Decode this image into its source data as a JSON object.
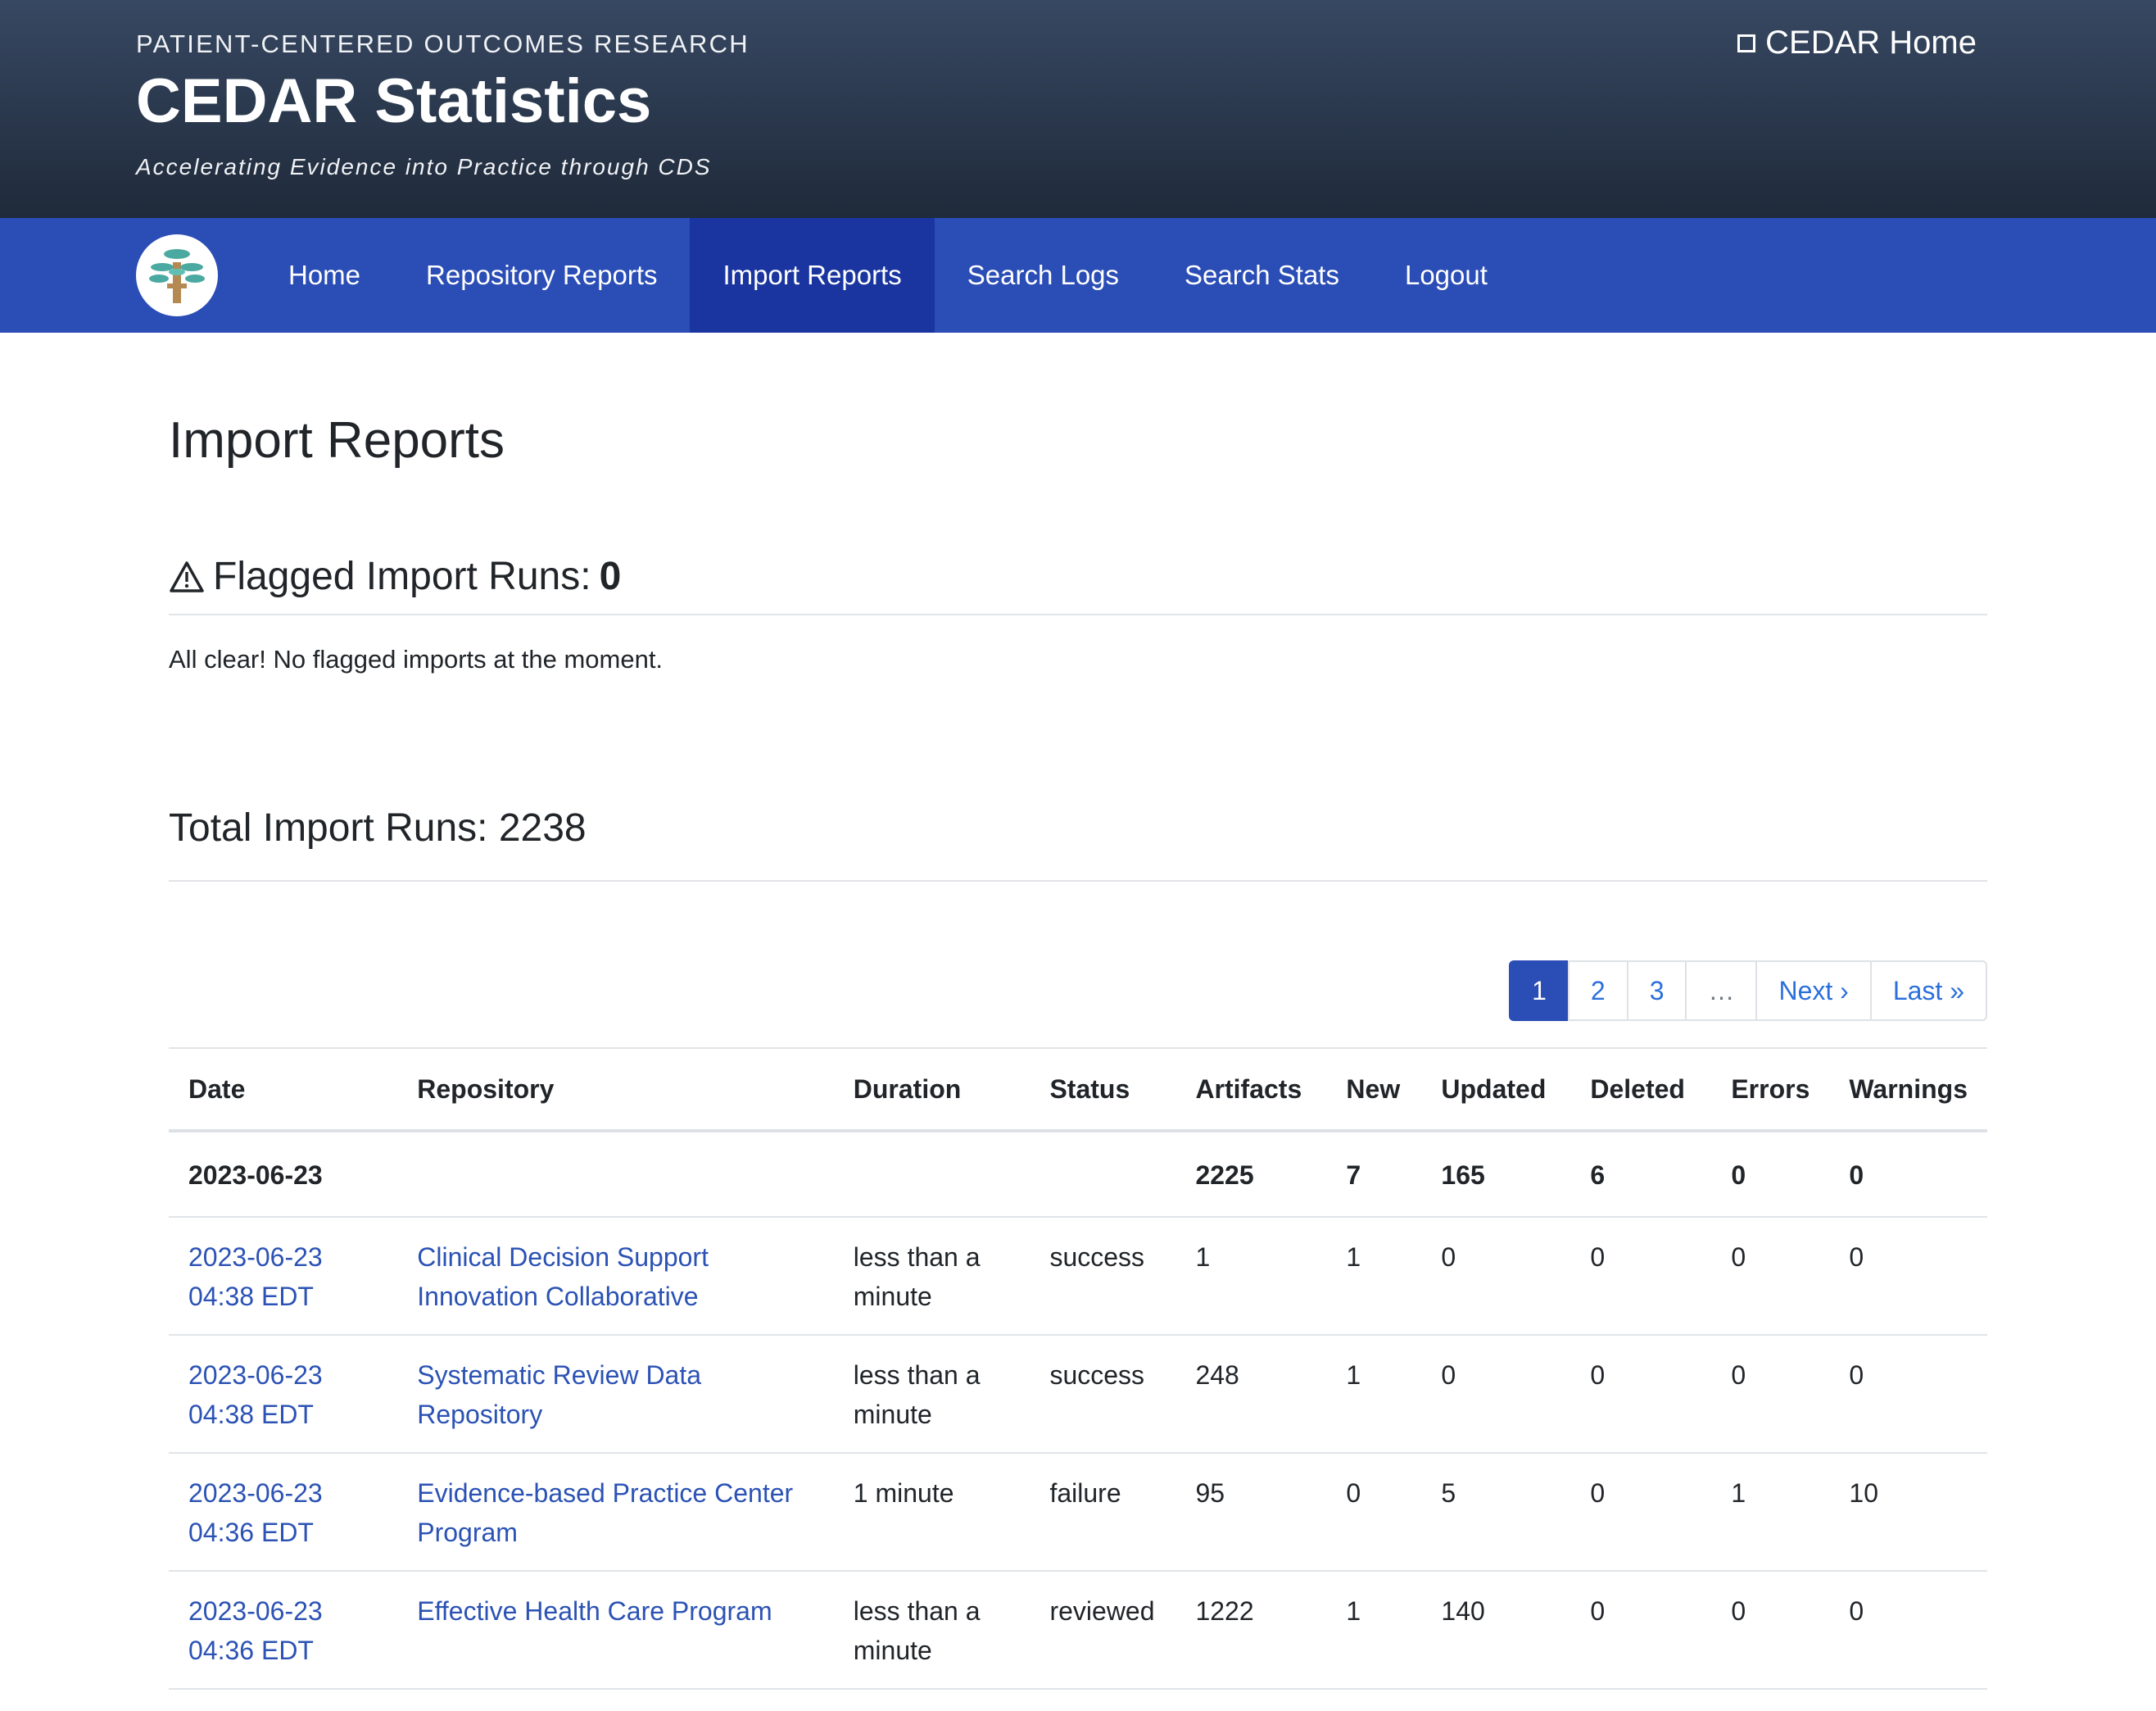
{
  "header": {
    "eyebrow": "PATIENT-CENTERED OUTCOMES RESEARCH",
    "title": "CEDAR Statistics",
    "tagline": "Accelerating Evidence into Practice through CDS",
    "home_link": "CEDAR Home"
  },
  "nav": {
    "items": [
      {
        "label": "Home"
      },
      {
        "label": "Repository Reports"
      },
      {
        "label": "Import Reports",
        "active": true
      },
      {
        "label": "Search Logs"
      },
      {
        "label": "Search Stats"
      },
      {
        "label": "Logout"
      }
    ]
  },
  "page": {
    "title": "Import Reports",
    "flagged_label": "Flagged Import Runs:",
    "flagged_count": "0",
    "flagged_note": "All clear! No flagged imports at the moment.",
    "total_label": "Total Import Runs: 2238"
  },
  "pagination": {
    "pages": [
      "1",
      "2",
      "3"
    ],
    "ellipsis": "…",
    "next": "Next ›",
    "last": "Last »",
    "current": "1"
  },
  "table": {
    "headers": [
      "Date",
      "Repository",
      "Duration",
      "Status",
      "Artifacts",
      "New",
      "Updated",
      "Deleted",
      "Errors",
      "Warnings"
    ],
    "summary": {
      "date": "2023-06-23",
      "artifacts": "2225",
      "new": "7",
      "updated": "165",
      "deleted": "6",
      "errors": "0",
      "warnings": "0"
    },
    "rows": [
      {
        "date": "2023-06-23",
        "time": "04:38 EDT",
        "repository": "Clinical Decision Support Innovation Collaborative",
        "duration": "less than a minute",
        "status": "success",
        "artifacts": "1",
        "new": "1",
        "updated": "0",
        "deleted": "0",
        "errors": "0",
        "warnings": "0"
      },
      {
        "date": "2023-06-23",
        "time": "04:38 EDT",
        "repository": "Systematic Review Data Repository",
        "duration": "less than a minute",
        "status": "success",
        "artifacts": "248",
        "new": "1",
        "updated": "0",
        "deleted": "0",
        "errors": "0",
        "warnings": "0"
      },
      {
        "date": "2023-06-23",
        "time": "04:36 EDT",
        "repository": "Evidence-based Practice Center Program",
        "duration": "1 minute",
        "status": "failure",
        "artifacts": "95",
        "new": "0",
        "updated": "5",
        "deleted": "0",
        "errors": "1",
        "warnings": "10"
      },
      {
        "date": "2023-06-23",
        "time": "04:36 EDT",
        "repository": "Effective Health Care Program",
        "duration": "less than a minute",
        "status": "reviewed",
        "artifacts": "1222",
        "new": "1",
        "updated": "140",
        "deleted": "0",
        "errors": "0",
        "warnings": "0"
      }
    ]
  }
}
